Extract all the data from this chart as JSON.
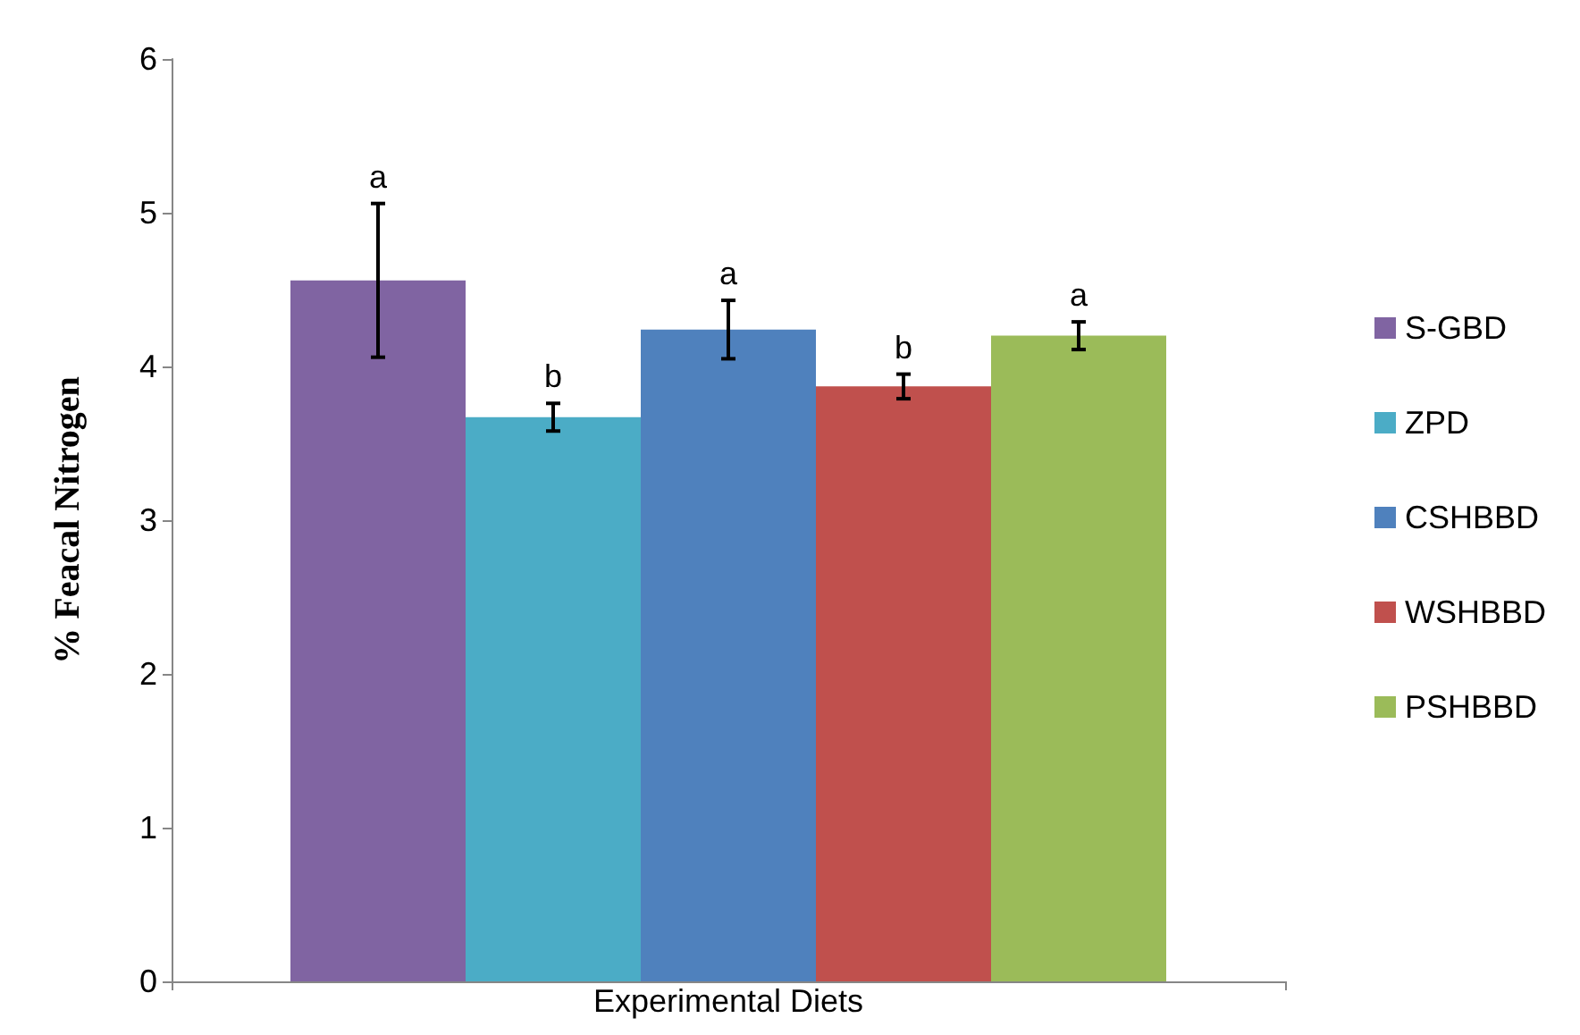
{
  "chart_data": {
    "type": "bar",
    "ylabel": "% Feacal Nitrogen",
    "categories": [
      "Experimental Diets"
    ],
    "ylim": [
      0,
      6
    ],
    "yticks": [
      0,
      1,
      2,
      3,
      4,
      5,
      6
    ],
    "grid": false,
    "legend": "right",
    "series": [
      {
        "name": "S-GBD",
        "color": "#8064a2",
        "values": [
          4.56
        ],
        "errors": [
          0.5
        ],
        "value_labels": [
          "a"
        ]
      },
      {
        "name": "ZPD",
        "color": "#4bacc6",
        "values": [
          3.67
        ],
        "errors": [
          0.09
        ],
        "value_labels": [
          "b"
        ]
      },
      {
        "name": "CSHBBD",
        "color": "#4f81bd",
        "values": [
          4.24
        ],
        "errors": [
          0.19
        ],
        "value_labels": [
          "a"
        ]
      },
      {
        "name": "WSHBBD",
        "color": "#c0504d",
        "values": [
          3.87
        ],
        "errors": [
          0.08
        ],
        "value_labels": [
          "b"
        ]
      },
      {
        "name": "PSHBBD",
        "color": "#9bbb59",
        "values": [
          4.2
        ],
        "errors": [
          0.09
        ],
        "value_labels": [
          "a"
        ]
      }
    ]
  }
}
